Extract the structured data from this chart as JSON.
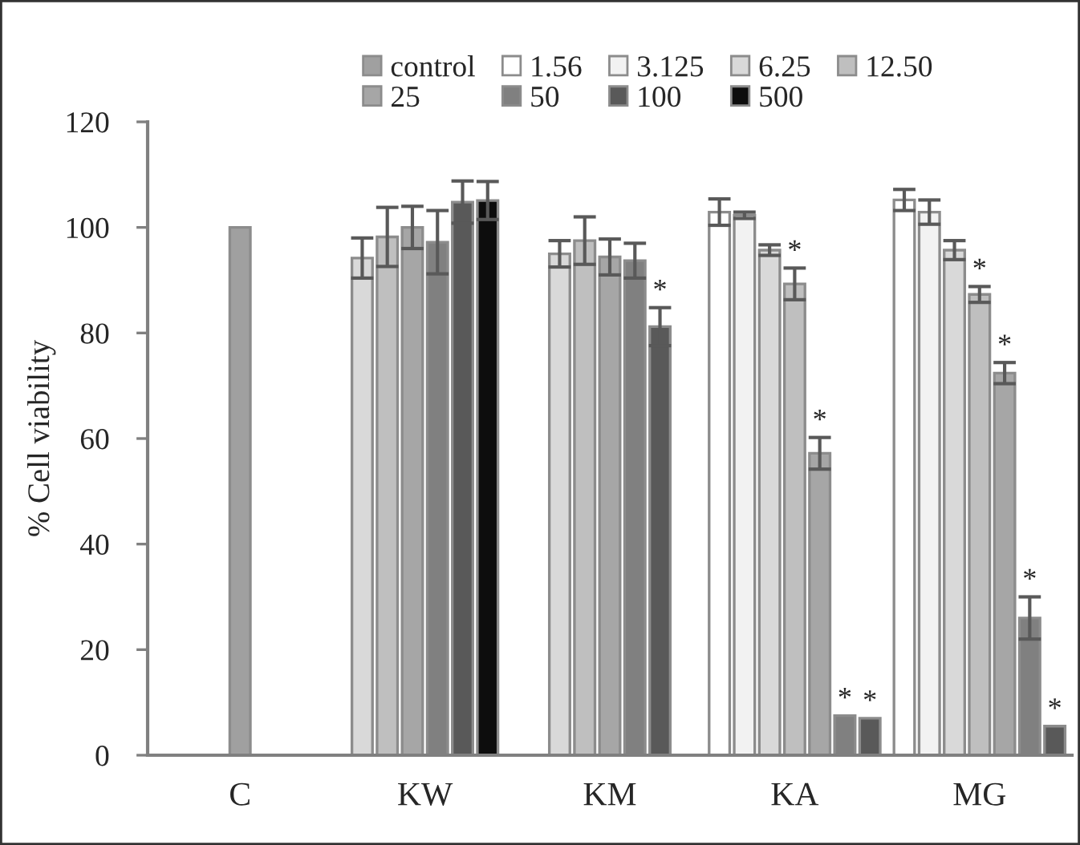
{
  "chart_data": {
    "type": "bar",
    "ylabel": "% Cell viability",
    "categories": [
      "C",
      "KW",
      "KM",
      "KA",
      "MG"
    ],
    "series": [
      {
        "name": "control",
        "color": "#a0a0a0",
        "values": [
          100,
          null,
          null,
          null,
          null
        ],
        "errors": [
          null,
          null,
          null,
          null,
          null
        ]
      },
      {
        "name": "1.56",
        "color": "#ffffff",
        "values": [
          null,
          null,
          null,
          102.9,
          105.2
        ],
        "errors": [
          null,
          null,
          null,
          2.5,
          2
        ]
      },
      {
        "name": "3.125",
        "color": "#f2f2f2",
        "values": [
          null,
          null,
          null,
          102.3,
          102.9
        ],
        "errors": [
          null,
          null,
          null,
          0.6,
          2.3
        ]
      },
      {
        "name": "6.25",
        "color": "#d9d9d9",
        "values": [
          null,
          94.2,
          95,
          95.7,
          95.7
        ],
        "errors": [
          null,
          3.8,
          2.5,
          1,
          1.8
        ]
      },
      {
        "name": "12.50",
        "color": "#bfbfbf",
        "values": [
          null,
          98.2,
          97.5,
          89.3,
          87.3
        ],
        "errors": [
          null,
          5.6,
          4.5,
          3,
          1.5
        ],
        "value_labels": [
          null,
          null,
          null,
          "*",
          "*"
        ]
      },
      {
        "name": "25",
        "color": "#a6a6a6",
        "values": [
          null,
          100,
          94.4,
          57.2,
          72.4
        ],
        "errors": [
          null,
          4,
          3.4,
          3,
          2
        ],
        "value_labels": [
          null,
          null,
          null,
          "*",
          "*"
        ]
      },
      {
        "name": "50",
        "color": "#808080",
        "values": [
          null,
          97.2,
          93.7,
          7.5,
          26
        ],
        "errors": [
          null,
          6,
          3.3,
          null,
          4
        ],
        "value_labels": [
          null,
          null,
          null,
          "*",
          "*"
        ]
      },
      {
        "name": "100",
        "color": "#595959",
        "values": [
          null,
          104.8,
          81.2,
          7,
          5.5
        ],
        "errors": [
          null,
          4,
          3.6,
          null,
          null
        ],
        "value_labels": [
          null,
          null,
          "*",
          "*",
          "*"
        ]
      },
      {
        "name": "500",
        "color": "#0d0d0d",
        "values": [
          null,
          105.1,
          null,
          null,
          null
        ],
        "errors": [
          null,
          3.6,
          null,
          null,
          null
        ]
      }
    ],
    "ylim": [
      0,
      120
    ],
    "yticks": [
      0,
      20,
      40,
      60,
      80,
      100,
      120
    ],
    "grid": false,
    "legend": "top"
  }
}
